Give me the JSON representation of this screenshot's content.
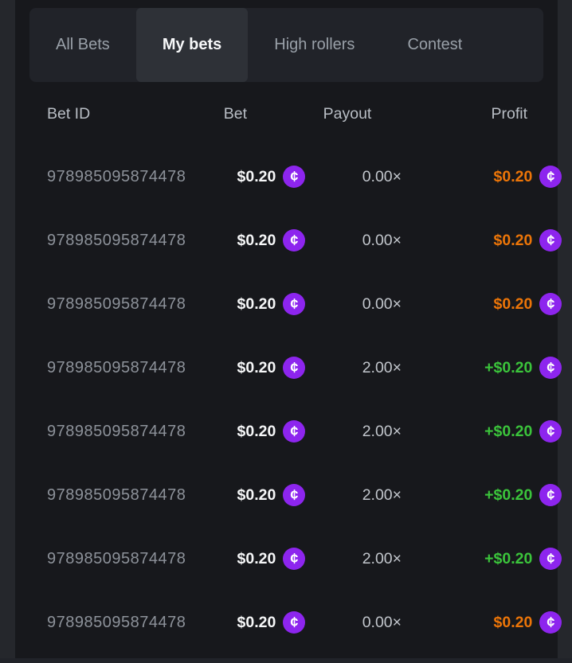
{
  "tabs": [
    {
      "label": "All Bets",
      "active": false
    },
    {
      "label": "My bets",
      "active": true
    },
    {
      "label": "High rollers",
      "active": false
    },
    {
      "label": "Contest",
      "active": false
    }
  ],
  "table": {
    "columns": [
      {
        "key": "bet_id",
        "label": "Bet ID"
      },
      {
        "key": "bet",
        "label": "Bet"
      },
      {
        "key": "payout",
        "label": "Payout"
      },
      {
        "key": "profit",
        "label": "Profit"
      }
    ],
    "rows": [
      {
        "bet_id": "978985095874478",
        "bet": "$0.20",
        "payout": "0.00×",
        "profit": "$0.20",
        "outcome": "loss"
      },
      {
        "bet_id": "978985095874478",
        "bet": "$0.20",
        "payout": "0.00×",
        "profit": "$0.20",
        "outcome": "loss"
      },
      {
        "bet_id": "978985095874478",
        "bet": "$0.20",
        "payout": "0.00×",
        "profit": "$0.20",
        "outcome": "loss"
      },
      {
        "bet_id": "978985095874478",
        "bet": "$0.20",
        "payout": "2.00×",
        "profit": "+$0.20",
        "outcome": "win"
      },
      {
        "bet_id": "978985095874478",
        "bet": "$0.20",
        "payout": "2.00×",
        "profit": "+$0.20",
        "outcome": "win"
      },
      {
        "bet_id": "978985095874478",
        "bet": "$0.20",
        "payout": "2.00×",
        "profit": "+$0.20",
        "outcome": "win"
      },
      {
        "bet_id": "978985095874478",
        "bet": "$0.20",
        "payout": "2.00×",
        "profit": "+$0.20",
        "outcome": "win"
      },
      {
        "bet_id": "978985095874478",
        "bet": "$0.20",
        "payout": "0.00×",
        "profit": "$0.20",
        "outcome": "loss"
      }
    ]
  },
  "icons": {
    "coin": {
      "name": "coin-icon",
      "glyph": "¢"
    }
  },
  "colors": {
    "outer_strip": "#25272c",
    "content_bg": "#17181c",
    "tabbar_bg": "#212329",
    "tab_active_bg": "#2e3137",
    "tab_text": "#99a0a8",
    "tab_active_text": "#f7f8f9",
    "header_text": "#b9bec5",
    "betid_text": "#8d929a",
    "payout_text": "#c2c6cc",
    "amount_text": "#f6f7f8",
    "profit_win": "#3bc43b",
    "profit_loss": "#ec7508",
    "coin_purple": "#8d25ee"
  }
}
